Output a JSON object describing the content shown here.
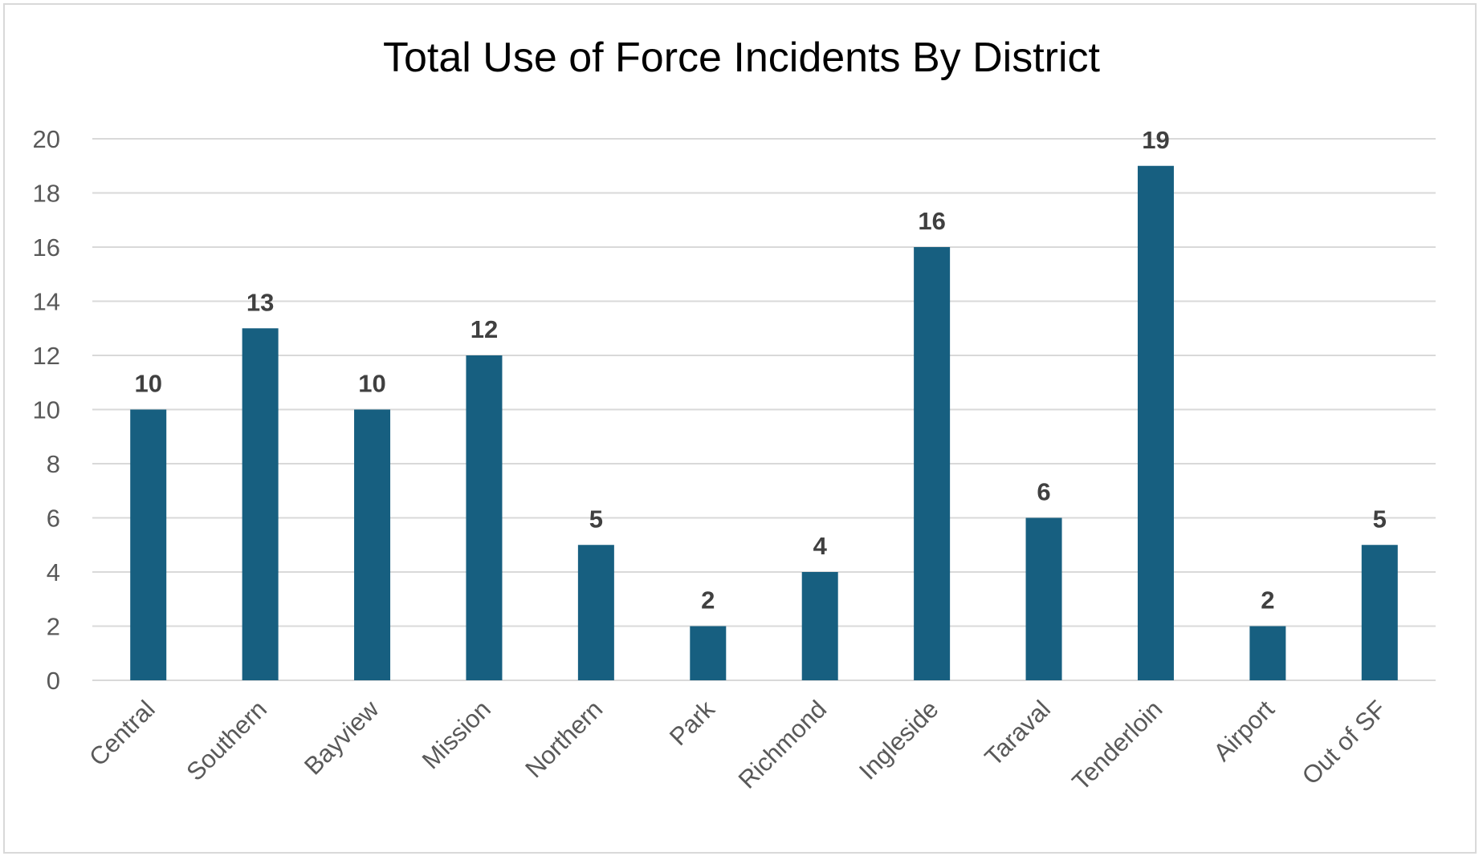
{
  "chart_data": {
    "type": "bar",
    "title": "Total Use of Force Incidents By District",
    "categories": [
      "Central",
      "Southern",
      "Bayview",
      "Mission",
      "Northern",
      "Park",
      "Richmond",
      "Ingleside",
      "Taraval",
      "Tenderloin",
      "Airport",
      "Out of SF"
    ],
    "values": [
      10,
      13,
      10,
      12,
      5,
      2,
      4,
      16,
      6,
      19,
      2,
      5
    ],
    "xlabel": "",
    "ylabel": "",
    "ylim": [
      0,
      20
    ],
    "yticks": [
      0,
      2,
      4,
      6,
      8,
      10,
      12,
      14,
      16,
      18,
      20
    ],
    "grid": true,
    "data_labels": true,
    "colors": {
      "bar": "#175f80",
      "grid": "#d9d9d9",
      "text": "#595959",
      "label": "#404040"
    }
  }
}
